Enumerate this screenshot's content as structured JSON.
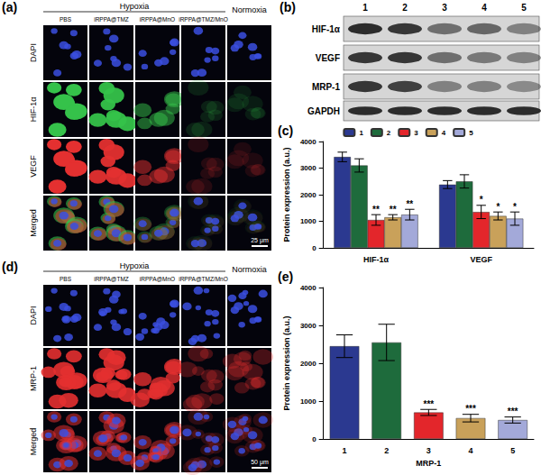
{
  "image_panels": [
    {
      "label": "(a)",
      "group_header": "Hypoxia",
      "columns": [
        "PBS",
        "iRPPA@TMZ",
        "iRPPA@MnO",
        "iRPPA@TMZ/MnO"
      ],
      "control_column": "Normoxia",
      "rows": [
        "DAPI",
        "HIF-1α",
        "VEGF",
        "Merged"
      ],
      "scale_bar": "25 μm"
    },
    {
      "label": "(d)",
      "group_header": "Hypoxia",
      "columns": [
        "PBS",
        "iRPPA@TMZ",
        "iRPPA@MnO",
        "iRPPA@TMZ/MnO"
      ],
      "control_column": "Normoxia",
      "rows": [
        "DAPI",
        "MRP-1",
        "Merged"
      ],
      "scale_bar": "50 μm"
    }
  ],
  "blot": {
    "label": "(b)",
    "lanes": [
      "1",
      "2",
      "3",
      "4",
      "5"
    ],
    "proteins": [
      "HIF-1α",
      "VEGF",
      "MRP-1",
      "GAPDH"
    ]
  },
  "chart_data": [
    {
      "label": "(c)",
      "type": "bar",
      "categories": [
        "HIF-1α",
        "VEGF"
      ],
      "y_label": "Protein expression (a.u.)",
      "ylim": [
        0,
        4000
      ],
      "yticks": [
        0,
        1000,
        2000,
        3000,
        4000
      ],
      "legend": "top",
      "series": [
        {
          "name": "1",
          "color": "#2b3990",
          "values": [
            3420,
            2380
          ],
          "errors": [
            180,
            150
          ],
          "significance": [
            null,
            null
          ]
        },
        {
          "name": "2",
          "color": "#1e6b3c",
          "values": [
            3100,
            2500
          ],
          "errors": [
            250,
            250
          ],
          "significance": [
            null,
            null
          ]
        },
        {
          "name": "3",
          "color": "#e3262b",
          "values": [
            1050,
            1350
          ],
          "errors": [
            200,
            250
          ],
          "significance": [
            "**",
            "*"
          ]
        },
        {
          "name": "4",
          "color": "#c9a15a",
          "values": [
            1150,
            1200
          ],
          "errors": [
            100,
            150
          ],
          "significance": [
            "**",
            "*"
          ]
        },
        {
          "name": "5",
          "color": "#a3a9d9",
          "values": [
            1250,
            1100
          ],
          "errors": [
            200,
            250
          ],
          "significance": [
            "**",
            "*"
          ]
        }
      ]
    },
    {
      "label": "(e)",
      "type": "bar",
      "categories": [
        "1",
        "2",
        "3",
        "4",
        "5"
      ],
      "x_label": "MRP-1",
      "y_label": "Protein expression (a.u.)",
      "ylim": [
        0,
        4000
      ],
      "yticks": [
        0,
        1000,
        2000,
        3000,
        4000
      ],
      "values": [
        2450,
        2550,
        700,
        550,
        500
      ],
      "errors": [
        300,
        480,
        80,
        100,
        80
      ],
      "significance": [
        null,
        null,
        "***",
        "***",
        "***"
      ],
      "colors": [
        "#2b3990",
        "#1e6b3c",
        "#e3262b",
        "#c9a15a",
        "#a3a9d9"
      ]
    }
  ]
}
